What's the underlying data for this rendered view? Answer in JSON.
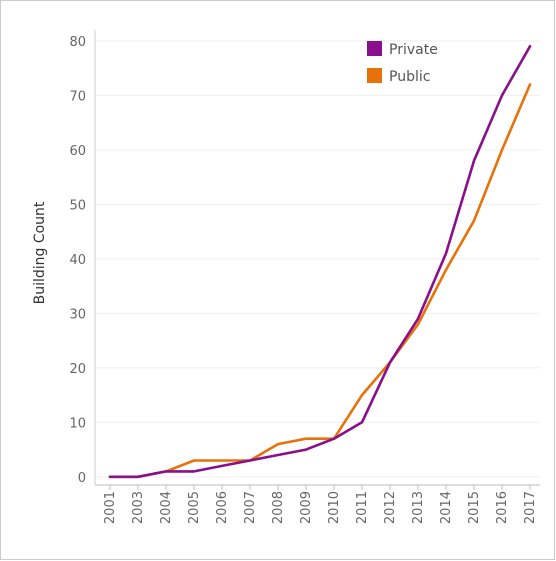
{
  "chart_data": {
    "type": "line",
    "title": "",
    "xlabel": "",
    "ylabel": "Building Count",
    "categories": [
      "2001",
      "2003",
      "2004",
      "2005",
      "2006",
      "2007",
      "2008",
      "2009",
      "2010",
      "2011",
      "2012",
      "2013",
      "2014",
      "2015",
      "2016",
      "2017"
    ],
    "series": [
      {
        "name": "Private",
        "color": "#8a0f8a",
        "values": [
          0,
          0,
          1,
          1,
          2,
          3,
          4,
          5,
          7,
          10,
          21,
          29,
          41,
          58,
          70,
          79
        ]
      },
      {
        "name": "Public",
        "color": "#e8710a",
        "values": [
          0,
          0,
          1,
          3,
          3,
          3,
          6,
          7,
          7,
          15,
          21,
          28,
          38,
          47,
          60,
          72
        ]
      }
    ],
    "yticks": [
      0,
      10,
      20,
      30,
      40,
      50,
      60,
      70,
      80
    ],
    "ylim": [
      -1.5,
      82
    ],
    "grid": true,
    "legend_position": "top-right"
  }
}
